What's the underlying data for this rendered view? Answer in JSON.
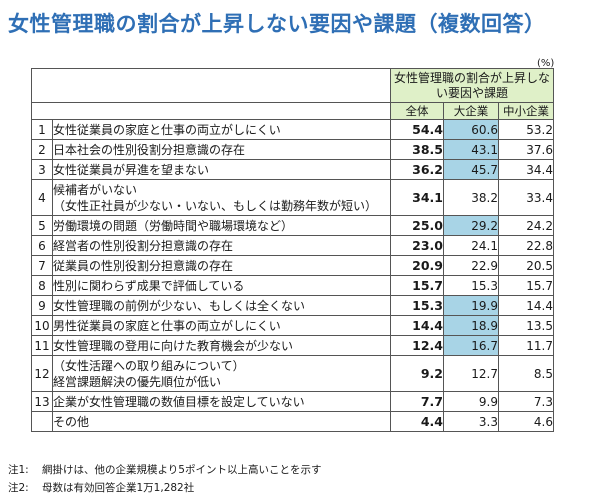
{
  "title": "女性管理職の割合が上昇しない要因や課題（複数回答）",
  "unit": "(%)",
  "header": {
    "group": "女性管理職の割合が上昇しない要因や課題",
    "columns": [
      "全体",
      "大企業",
      "中小企業"
    ]
  },
  "rows": [
    {
      "num": "1",
      "item": "女性従業員の家庭と仕事の両立がしにくい",
      "all": "54.4",
      "large": "60.6",
      "sme": "53.2",
      "shaded": true
    },
    {
      "num": "2",
      "item": "日本社会の性別役割分担意識の存在",
      "all": "38.5",
      "large": "43.1",
      "sme": "37.6",
      "shaded": true
    },
    {
      "num": "3",
      "item": "女性従業員が昇進を望まない",
      "all": "36.2",
      "large": "45.7",
      "sme": "34.4",
      "shaded": true
    },
    {
      "num": "4",
      "item": "候補者がいない\n（女性正社員が少ない・いない、もしくは勤務年数が短い）",
      "all": "34.1",
      "large": "38.2",
      "sme": "33.4",
      "shaded": false
    },
    {
      "num": "5",
      "item": "労働環境の問題（労働時間や職場環境など）",
      "all": "25.0",
      "large": "29.2",
      "sme": "24.2",
      "shaded": true
    },
    {
      "num": "6",
      "item": "経営者の性別役割分担意識の存在",
      "all": "23.0",
      "large": "24.1",
      "sme": "22.8",
      "shaded": false
    },
    {
      "num": "7",
      "item": "従業員の性別役割分担意識の存在",
      "all": "20.9",
      "large": "22.9",
      "sme": "20.5",
      "shaded": false
    },
    {
      "num": "8",
      "item": "性別に関わらず成果で評価している",
      "all": "15.7",
      "large": "15.3",
      "sme": "15.7",
      "shaded": false
    },
    {
      "num": "9",
      "item": "女性管理職の前例が少ない、もしくは全くない",
      "all": "15.3",
      "large": "19.9",
      "sme": "14.4",
      "shaded": true
    },
    {
      "num": "10",
      "item": "男性従業員の家庭と仕事の両立がしにくい",
      "all": "14.4",
      "large": "18.9",
      "sme": "13.5",
      "shaded": true
    },
    {
      "num": "11",
      "item": "女性管理職の登用に向けた教育機会が少ない",
      "all": "12.4",
      "large": "16.7",
      "sme": "11.7",
      "shaded": true
    },
    {
      "num": "12",
      "item": "（女性活躍への取り組みについて）\n経営課題解決の優先順位が低い",
      "all": "9.2",
      "large": "12.7",
      "sme": "8.5",
      "shaded": false
    },
    {
      "num": "13",
      "item": "企業が女性管理職の数値目標を設定していない",
      "all": "7.7",
      "large": "9.9",
      "sme": "7.3",
      "shaded": false
    },
    {
      "num": "",
      "item": "その他",
      "all": "4.4",
      "large": "3.3",
      "sme": "4.6",
      "shaded": false
    }
  ],
  "notes": [
    {
      "label": "注1:",
      "text": "網掛けは、他の企業規模より5ポイント以上高いことを示す"
    },
    {
      "label": "注2:",
      "text": "母数は有効回答企業1万1,282社"
    }
  ],
  "colors": {
    "title": "#2f6fb5",
    "header_bg": "#dff0c8",
    "shade": "#a8d4e6"
  },
  "chart_data": {
    "type": "table",
    "title": "女性管理職の割合が上昇しない要因や課題（複数回答）",
    "unit": "(%)",
    "columns": [
      "全体",
      "大企業",
      "中小企業"
    ],
    "categories": [
      "女性従業員の家庭と仕事の両立がしにくい",
      "日本社会の性別役割分担意識の存在",
      "女性従業員が昇進を望まない",
      "候補者がいない（女性正社員が少ない・いない、もしくは勤務年数が短い）",
      "労働環境の問題（労働時間や職場環境など）",
      "経営者の性別役割分担意識の存在",
      "従業員の性別役割分担意識の存在",
      "性別に関わらず成果で評価している",
      "女性管理職の前例が少ない、もしくは全くない",
      "男性従業員の家庭と仕事の両立がしにくい",
      "女性管理職の登用に向けた教育機会が少ない",
      "（女性活躍への取り組みについて）経営課題解決の優先順位が低い",
      "企業が女性管理職の数値目標を設定していない",
      "その他"
    ],
    "series": [
      {
        "name": "全体",
        "values": [
          54.4,
          38.5,
          36.2,
          34.1,
          25.0,
          23.0,
          20.9,
          15.7,
          15.3,
          14.4,
          12.4,
          9.2,
          7.7,
          4.4
        ]
      },
      {
        "name": "大企業",
        "values": [
          60.6,
          43.1,
          45.7,
          38.2,
          29.2,
          24.1,
          22.9,
          15.3,
          19.9,
          18.9,
          16.7,
          12.7,
          9.9,
          3.3
        ]
      },
      {
        "name": "中小企業",
        "values": [
          53.2,
          37.6,
          34.4,
          33.4,
          24.2,
          22.8,
          20.5,
          15.7,
          14.4,
          13.5,
          11.7,
          8.5,
          7.3,
          4.6
        ]
      }
    ]
  }
}
